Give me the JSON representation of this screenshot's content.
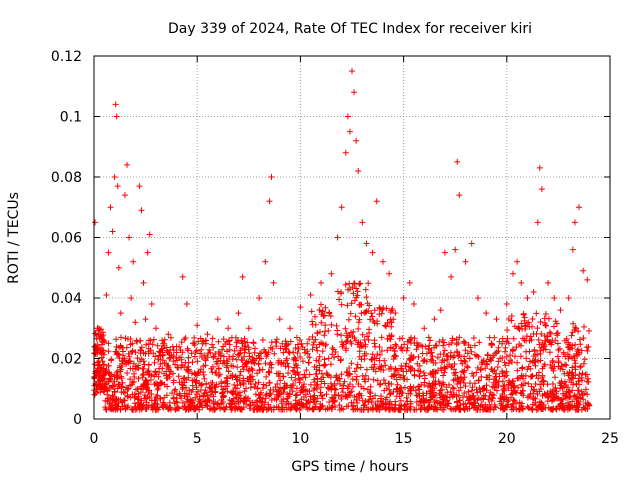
{
  "chart_data": {
    "type": "scatter",
    "title": "Day 339 of 2024, Rate Of TEC Index for receiver kiri",
    "xlabel": "GPS time / hours",
    "ylabel": "ROTI / TECUs",
    "xlim": [
      0,
      25
    ],
    "ylim": [
      0,
      0.12
    ],
    "xticks": [
      0,
      5,
      10,
      15,
      20,
      25
    ],
    "yticks": [
      0,
      0.02,
      0.04,
      0.06,
      0.08,
      0.1,
      0.12
    ],
    "xtick_labels": [
      "0",
      "5",
      "10",
      "15",
      "20",
      "25"
    ],
    "ytick_labels": [
      "0",
      "0.02",
      "0.04",
      "0.06",
      "0.08",
      "0.1",
      "0.12"
    ],
    "grid": true,
    "marker": "+",
    "color": "#ff0000",
    "series": [
      {
        "name": "ROTI",
        "x": [
          0.05,
          0.1,
          0.15,
          0.2,
          0.3,
          0.5,
          0.6,
          0.7,
          0.8,
          0.9,
          1.0,
          1.05,
          1.1,
          1.15,
          1.2,
          1.3,
          1.5,
          1.6,
          1.7,
          1.8,
          1.9,
          2.0,
          2.2,
          2.3,
          2.4,
          2.5,
          2.6,
          2.7,
          2.8,
          3.0,
          3.3,
          3.6,
          4.0,
          4.3,
          4.5,
          4.8,
          5.0,
          5.5,
          6.0,
          6.5,
          7.0,
          7.2,
          7.5,
          8.0,
          8.3,
          8.5,
          8.6,
          8.7,
          9.0,
          9.5,
          10.0,
          10.5,
          11.0,
          11.5,
          11.8,
          12.0,
          12.2,
          12.3,
          12.4,
          12.5,
          12.6,
          12.7,
          12.8,
          13.0,
          13.2,
          13.5,
          13.7,
          14.0,
          14.3,
          14.6,
          15.0,
          15.3,
          15.5,
          16.0,
          16.5,
          16.8,
          17.0,
          17.3,
          17.5,
          17.6,
          17.7,
          18.0,
          18.3,
          18.6,
          19.0,
          19.5,
          20.0,
          20.3,
          20.5,
          20.7,
          21.0,
          21.3,
          21.5,
          21.6,
          21.7,
          22.0,
          22.3,
          22.6,
          23.0,
          23.2,
          23.3,
          23.5,
          23.7,
          23.9
        ],
        "y": [
          0.065,
          0.009,
          0.016,
          0.03,
          0.022,
          0.013,
          0.041,
          0.055,
          0.07,
          0.062,
          0.08,
          0.104,
          0.1,
          0.077,
          0.05,
          0.035,
          0.074,
          0.084,
          0.06,
          0.04,
          0.052,
          0.032,
          0.077,
          0.069,
          0.045,
          0.033,
          0.055,
          0.061,
          0.038,
          0.03,
          0.026,
          0.028,
          0.022,
          0.047,
          0.038,
          0.025,
          0.031,
          0.028,
          0.033,
          0.03,
          0.035,
          0.047,
          0.03,
          0.04,
          0.052,
          0.072,
          0.08,
          0.045,
          0.033,
          0.03,
          0.037,
          0.041,
          0.045,
          0.048,
          0.06,
          0.07,
          0.088,
          0.1,
          0.095,
          0.115,
          0.108,
          0.092,
          0.082,
          0.065,
          0.058,
          0.055,
          0.072,
          0.052,
          0.048,
          0.035,
          0.04,
          0.045,
          0.038,
          0.03,
          0.033,
          0.036,
          0.055,
          0.047,
          0.056,
          0.085,
          0.074,
          0.052,
          0.058,
          0.04,
          0.035,
          0.033,
          0.038,
          0.048,
          0.052,
          0.045,
          0.04,
          0.042,
          0.065,
          0.083,
          0.076,
          0.045,
          0.04,
          0.036,
          0.04,
          0.056,
          0.065,
          0.07,
          0.049,
          0.046
        ]
      }
    ]
  }
}
